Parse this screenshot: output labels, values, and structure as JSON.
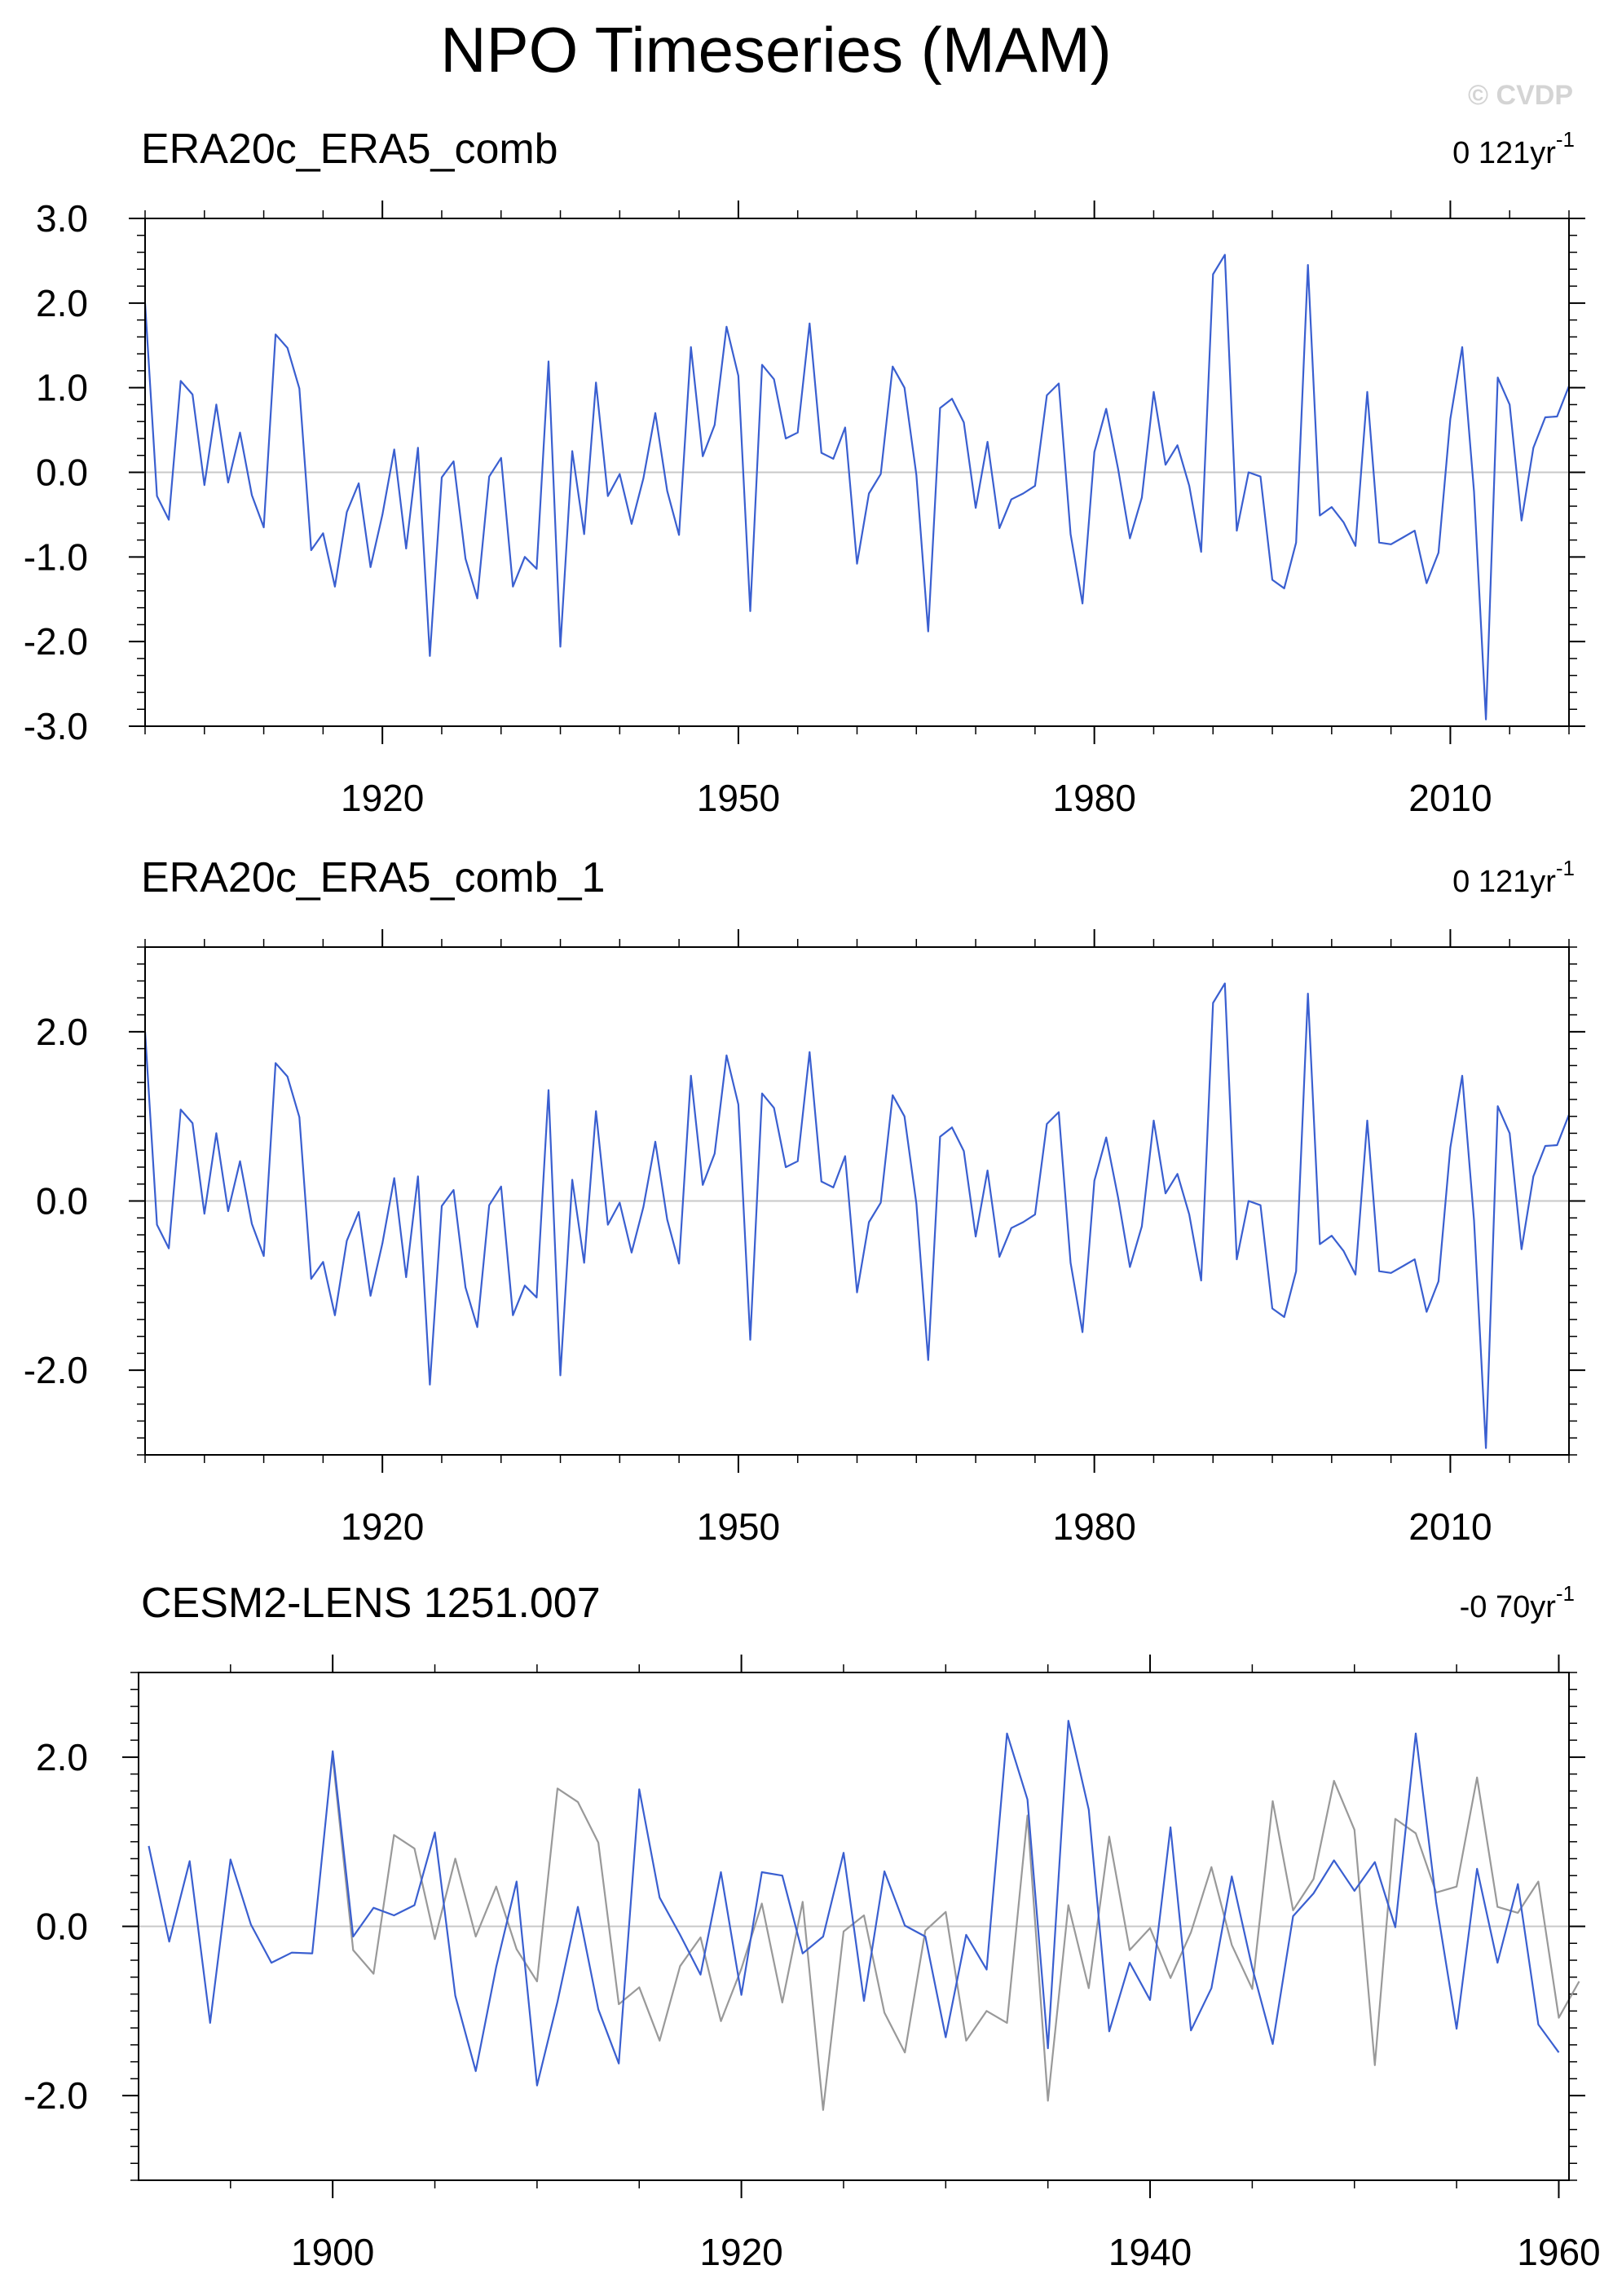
{
  "title": "NPO Timeseries (MAM)",
  "watermark": "© CVDP",
  "colors": {
    "series": "#3a5fd0",
    "secondary": "#999999",
    "zero": "#c8c8c8",
    "frame": "#000000"
  },
  "chart_data": [
    {
      "type": "line",
      "title": "ERA20c_ERA5_comb",
      "trend": "0 121yr",
      "trend_sup": "-1",
      "xlim": [
        1900,
        2020
      ],
      "ylim": [
        -3,
        3
      ],
      "xticks": [
        1920,
        1950,
        1980,
        2010
      ],
      "yticks": [
        3,
        2,
        1,
        0,
        -1,
        -2,
        -3
      ],
      "ytick_labels": [
        "3.0",
        "2.0",
        "1.0",
        "0.0",
        "-1.0",
        "-2.0",
        "-3.0"
      ],
      "grid": false,
      "x_start": 1900,
      "series": [
        {
          "values": [
            2.0,
            -0.28,
            -0.56,
            1.08,
            0.92,
            -0.15,
            0.8,
            -0.12,
            0.47,
            -0.27,
            -0.65,
            1.63,
            1.47,
            0.99,
            -0.92,
            -0.72,
            -1.35,
            -0.47,
            -0.13,
            -1.12,
            -0.5,
            0.27,
            -0.9,
            0.29,
            -2.17,
            -0.06,
            0.13,
            -1.02,
            -1.49,
            -0.05,
            0.17,
            -1.35,
            -1.0,
            -1.14,
            1.31,
            -2.06,
            0.25,
            -0.73,
            1.06,
            -0.28,
            -0.02,
            -0.61,
            -0.07,
            0.7,
            -0.22,
            -0.74,
            1.48,
            0.19,
            0.56,
            1.72,
            1.14,
            -1.64,
            1.27,
            1.1,
            0.4,
            0.47,
            1.76,
            0.23,
            0.16,
            0.53,
            -1.08,
            -0.25,
            -0.02,
            1.25,
            1.0,
            -0.03,
            -1.88,
            0.76,
            0.87,
            0.59,
            -0.42,
            0.36,
            -0.66,
            -0.32,
            -0.25,
            -0.16,
            0.91,
            1.05,
            -0.73,
            -1.55,
            0.24,
            0.75,
            0.04,
            -0.78,
            -0.3,
            0.95,
            0.09,
            0.32,
            -0.16,
            -0.94,
            2.34,
            2.57,
            -0.69,
            0.0,
            -0.05,
            -1.27,
            -1.37,
            -0.83,
            2.45,
            -0.51,
            -0.41,
            -0.59,
            -0.87,
            0.95,
            -0.83,
            -0.85,
            -0.77,
            -0.69,
            -1.31,
            -0.95,
            0.63,
            1.48,
            -0.23,
            -2.92,
            1.12,
            0.8,
            -0.57,
            0.29,
            0.65,
            0.66,
            1.02
          ]
        }
      ]
    },
    {
      "type": "line",
      "title": "ERA20c_ERA5_comb_1",
      "trend": "0 121yr",
      "trend_sup": "-1",
      "xlim": [
        1900,
        2020
      ],
      "ylim": [
        -3,
        3
      ],
      "xticks": [
        1920,
        1950,
        1980,
        2010
      ],
      "yticks": [
        2,
        0,
        -2
      ],
      "ytick_labels": [
        "2.0",
        "0.0",
        "-2.0"
      ],
      "grid": false,
      "x_start": 1900,
      "series": [
        {
          "values": [
            2.0,
            -0.28,
            -0.56,
            1.08,
            0.92,
            -0.15,
            0.8,
            -0.12,
            0.47,
            -0.27,
            -0.65,
            1.63,
            1.47,
            0.99,
            -0.92,
            -0.72,
            -1.35,
            -0.47,
            -0.13,
            -1.12,
            -0.5,
            0.27,
            -0.9,
            0.29,
            -2.17,
            -0.06,
            0.13,
            -1.02,
            -1.49,
            -0.05,
            0.17,
            -1.35,
            -1.0,
            -1.14,
            1.31,
            -2.06,
            0.25,
            -0.73,
            1.06,
            -0.28,
            -0.02,
            -0.61,
            -0.07,
            0.7,
            -0.22,
            -0.74,
            1.48,
            0.19,
            0.56,
            1.72,
            1.14,
            -1.64,
            1.27,
            1.1,
            0.4,
            0.47,
            1.76,
            0.23,
            0.16,
            0.53,
            -1.08,
            -0.25,
            -0.02,
            1.25,
            1.0,
            -0.03,
            -1.88,
            0.76,
            0.87,
            0.59,
            -0.42,
            0.36,
            -0.66,
            -0.32,
            -0.25,
            -0.16,
            0.91,
            1.05,
            -0.73,
            -1.55,
            0.24,
            0.75,
            0.04,
            -0.78,
            -0.3,
            0.95,
            0.09,
            0.32,
            -0.16,
            -0.94,
            2.34,
            2.57,
            -0.69,
            0.0,
            -0.05,
            -1.27,
            -1.37,
            -0.83,
            2.45,
            -0.51,
            -0.41,
            -0.59,
            -0.87,
            0.95,
            -0.83,
            -0.85,
            -0.77,
            -0.69,
            -1.31,
            -0.95,
            0.63,
            1.48,
            -0.23,
            -2.92,
            1.12,
            0.8,
            -0.57,
            0.29,
            0.65,
            0.66,
            1.02
          ]
        }
      ]
    },
    {
      "type": "line",
      "title": "CESM2-LENS 1251.007",
      "trend": "-0 70yr",
      "trend_sup": "-1",
      "xlim": [
        1890.5,
        1960.5
      ],
      "ylim": [
        -3,
        3
      ],
      "xticks": [
        1900,
        1920,
        1940,
        1960
      ],
      "yticks": [
        2,
        0,
        -2
      ],
      "ytick_labels": [
        "2.0",
        "0.0",
        "-2.0"
      ],
      "grid": false,
      "series": [
        {
          "x_start": 1891,
          "values": [
            0.95,
            -0.18,
            0.77,
            -1.14,
            0.79,
            0.02,
            -0.43,
            -0.31,
            -0.32,
            2.07,
            -0.12,
            0.22,
            0.13,
            0.25,
            1.11,
            -0.82,
            -1.71,
            -0.48,
            0.53,
            -1.88,
            -0.89,
            0.23,
            -0.98,
            -1.62,
            1.62,
            0.34,
            -0.1,
            -0.57,
            0.64,
            -0.81,
            0.64,
            0.6,
            -0.32,
            -0.12,
            0.87,
            -0.88,
            0.65,
            0.01,
            -0.12,
            -1.31,
            -0.1,
            -0.51,
            2.28,
            1.5,
            -1.44,
            2.43,
            1.38,
            -1.24,
            -0.43,
            -0.87,
            1.17,
            -1.23,
            -0.73,
            0.59,
            -0.49,
            -1.39,
            0.12,
            0.39,
            0.78,
            0.42,
            0.76,
            -0.01,
            2.28,
            0.29,
            -1.21,
            0.68,
            -0.43,
            0.5,
            -1.16,
            -1.49
          ]
        },
        {
          "x_start": 1900,
          "values": [
            2.0,
            -0.28,
            -0.56,
            1.08,
            0.92,
            -0.15,
            0.8,
            -0.12,
            0.47,
            -0.27,
            -0.65,
            1.63,
            1.47,
            0.99,
            -0.92,
            -0.72,
            -1.35,
            -0.47,
            -0.13,
            -1.12,
            -0.5,
            0.27,
            -0.9,
            0.29,
            -2.17,
            -0.06,
            0.13,
            -1.02,
            -1.49,
            -0.05,
            0.17,
            -1.35,
            -1.0,
            -1.14,
            1.31,
            -2.06,
            0.25,
            -0.73,
            1.06,
            -0.28,
            -0.02,
            -0.61,
            -0.07,
            0.7,
            -0.22,
            -0.74,
            1.48,
            0.19,
            0.56,
            1.72,
            1.14,
            -1.64,
            1.27,
            1.1,
            0.4,
            0.47,
            1.76,
            0.23,
            0.16,
            0.53,
            -1.08,
            -0.65
          ]
        }
      ]
    }
  ]
}
